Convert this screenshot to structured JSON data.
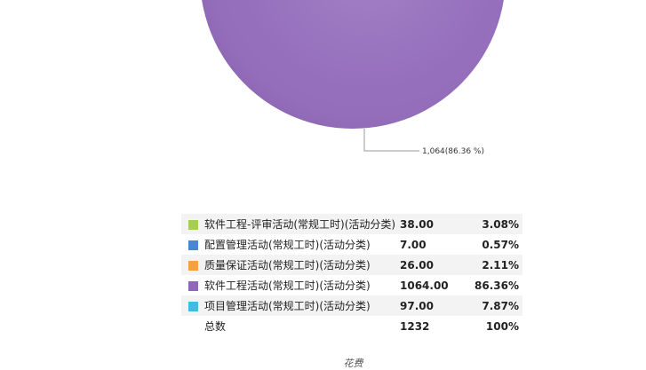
{
  "chart_data": {
    "type": "pie",
    "categories": [
      "软件工程-评审活动(常规工时)(活动分类)",
      "配置管理活动(常规工时)(活动分类)",
      "质量保证活动(常规工时)(活动分类)",
      "软件工程活动(常规工时)(活动分类)",
      "项目管理活动(常规工时)(活动分类)"
    ],
    "values": [
      38,
      7,
      26,
      1064,
      97
    ],
    "colors": [
      "#a6cf4f",
      "#4a86d6",
      "#f7a13c",
      "#8f66b8",
      "#3fbde0"
    ],
    "visible_slice_label": "1,064(86.36 %)"
  },
  "legend": {
    "rows": [
      {
        "name": "软件工程-评审活动(常规工时)(活动分类)",
        "value": "38.00",
        "pct": "3.08%",
        "color": "#a6cf4f"
      },
      {
        "name": "配置管理活动(常规工时)(活动分类)",
        "value": "7.00",
        "pct": "0.57%",
        "color": "#4a86d6"
      },
      {
        "name": "质量保证活动(常规工时)(活动分类)",
        "value": "26.00",
        "pct": "2.11%",
        "color": "#f7a13c"
      },
      {
        "name": "软件工程活动(常规工时)(活动分类)",
        "value": "1064.00",
        "pct": "86.36%",
        "color": "#8f66b8"
      },
      {
        "name": "项目管理活动(常规工时)(活动分类)",
        "value": "97.00",
        "pct": "7.87%",
        "color": "#3fbde0"
      }
    ],
    "total": {
      "name": "总数",
      "value": "1232",
      "pct": "100%"
    }
  },
  "footer": {
    "label": "花费"
  }
}
